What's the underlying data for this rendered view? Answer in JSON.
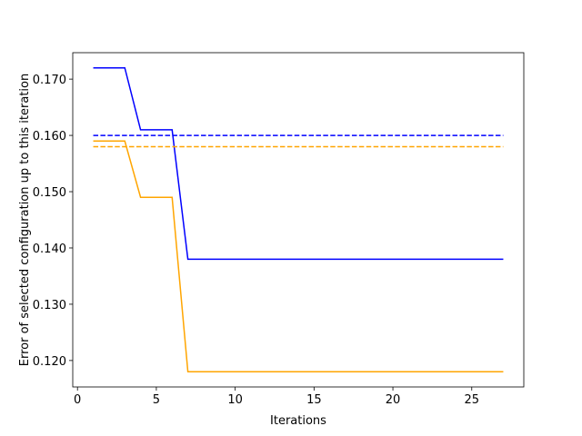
{
  "chart_data": {
    "type": "line",
    "xlabel": "Iterations",
    "ylabel": "Error of selected configuration up to this iteration",
    "x": [
      1,
      2,
      3,
      4,
      5,
      6,
      7,
      8,
      9,
      10,
      11,
      12,
      13,
      14,
      15,
      16,
      17,
      18,
      19,
      20,
      21,
      22,
      23,
      24,
      25,
      26,
      27
    ],
    "series": [
      {
        "color": "#0000ff",
        "linestyle": "solid",
        "values": [
          0.172,
          0.172,
          0.172,
          0.161,
          0.161,
          0.161,
          0.138,
          0.138,
          0.138,
          0.138,
          0.138,
          0.138,
          0.138,
          0.138,
          0.138,
          0.138,
          0.138,
          0.138,
          0.138,
          0.138,
          0.138,
          0.138,
          0.138,
          0.138,
          0.138,
          0.138,
          0.138
        ]
      },
      {
        "color": "#ffa500",
        "linestyle": "solid",
        "values": [
          0.159,
          0.159,
          0.159,
          0.149,
          0.149,
          0.149,
          0.118,
          0.118,
          0.118,
          0.118,
          0.118,
          0.118,
          0.118,
          0.118,
          0.118,
          0.118,
          0.118,
          0.118,
          0.118,
          0.118,
          0.118,
          0.118,
          0.118,
          0.118,
          0.118,
          0.118,
          0.118
        ]
      },
      {
        "color": "#0000ff",
        "linestyle": "dashed",
        "values": [
          0.16,
          0.16,
          0.16,
          0.16,
          0.16,
          0.16,
          0.16,
          0.16,
          0.16,
          0.16,
          0.16,
          0.16,
          0.16,
          0.16,
          0.16,
          0.16,
          0.16,
          0.16,
          0.16,
          0.16,
          0.16,
          0.16,
          0.16,
          0.16,
          0.16,
          0.16,
          0.16
        ]
      },
      {
        "color": "#ffa500",
        "linestyle": "dashed",
        "values": [
          0.158,
          0.158,
          0.158,
          0.158,
          0.158,
          0.158,
          0.158,
          0.158,
          0.158,
          0.158,
          0.158,
          0.158,
          0.158,
          0.158,
          0.158,
          0.158,
          0.158,
          0.158,
          0.158,
          0.158,
          0.158,
          0.158,
          0.158,
          0.158,
          0.158,
          0.158,
          0.158
        ]
      }
    ],
    "xlim": [
      -0.3,
      28.3
    ],
    "xticks": [
      0,
      5,
      10,
      15,
      20,
      25
    ],
    "ylim": [
      0.1153,
      0.1747
    ],
    "yticks": [
      {
        "value": 0.12,
        "label": "0.120"
      },
      {
        "value": 0.13,
        "label": "0.130"
      },
      {
        "value": 0.14,
        "label": "0.140"
      },
      {
        "value": 0.15,
        "label": "0.150"
      },
      {
        "value": 0.16,
        "label": "0.160"
      },
      {
        "value": 0.17,
        "label": "0.170"
      }
    ],
    "grid": false
  }
}
